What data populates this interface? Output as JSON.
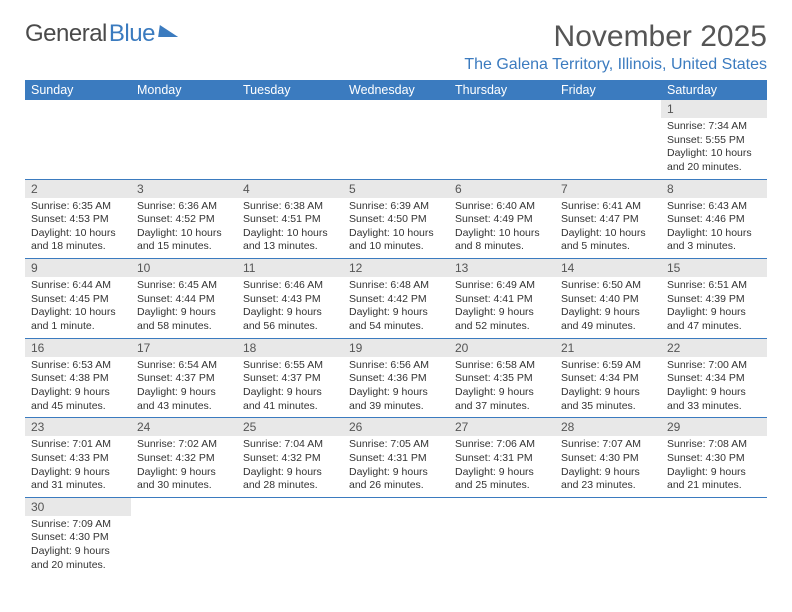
{
  "logo": {
    "text1": "General",
    "text2": "Blue"
  },
  "title": "November 2025",
  "location": "The Galena Territory, Illinois, United States",
  "colors": {
    "header_bg": "#3b7bbf",
    "header_text": "#ffffff",
    "daynum_bg": "#e8e8e8",
    "border": "#3b7bbf",
    "title_color": "#555555",
    "location_color": "#3b7bbf"
  },
  "weekdays": [
    "Sunday",
    "Monday",
    "Tuesday",
    "Wednesday",
    "Thursday",
    "Friday",
    "Saturday"
  ],
  "weeks": [
    [
      null,
      null,
      null,
      null,
      null,
      null,
      {
        "n": "1",
        "sr": "Sunrise: 7:34 AM",
        "ss": "Sunset: 5:55 PM",
        "dl": "Daylight: 10 hours and 20 minutes."
      }
    ],
    [
      {
        "n": "2",
        "sr": "Sunrise: 6:35 AM",
        "ss": "Sunset: 4:53 PM",
        "dl": "Daylight: 10 hours and 18 minutes."
      },
      {
        "n": "3",
        "sr": "Sunrise: 6:36 AM",
        "ss": "Sunset: 4:52 PM",
        "dl": "Daylight: 10 hours and 15 minutes."
      },
      {
        "n": "4",
        "sr": "Sunrise: 6:38 AM",
        "ss": "Sunset: 4:51 PM",
        "dl": "Daylight: 10 hours and 13 minutes."
      },
      {
        "n": "5",
        "sr": "Sunrise: 6:39 AM",
        "ss": "Sunset: 4:50 PM",
        "dl": "Daylight: 10 hours and 10 minutes."
      },
      {
        "n": "6",
        "sr": "Sunrise: 6:40 AM",
        "ss": "Sunset: 4:49 PM",
        "dl": "Daylight: 10 hours and 8 minutes."
      },
      {
        "n": "7",
        "sr": "Sunrise: 6:41 AM",
        "ss": "Sunset: 4:47 PM",
        "dl": "Daylight: 10 hours and 5 minutes."
      },
      {
        "n": "8",
        "sr": "Sunrise: 6:43 AM",
        "ss": "Sunset: 4:46 PM",
        "dl": "Daylight: 10 hours and 3 minutes."
      }
    ],
    [
      {
        "n": "9",
        "sr": "Sunrise: 6:44 AM",
        "ss": "Sunset: 4:45 PM",
        "dl": "Daylight: 10 hours and 1 minute."
      },
      {
        "n": "10",
        "sr": "Sunrise: 6:45 AM",
        "ss": "Sunset: 4:44 PM",
        "dl": "Daylight: 9 hours and 58 minutes."
      },
      {
        "n": "11",
        "sr": "Sunrise: 6:46 AM",
        "ss": "Sunset: 4:43 PM",
        "dl": "Daylight: 9 hours and 56 minutes."
      },
      {
        "n": "12",
        "sr": "Sunrise: 6:48 AM",
        "ss": "Sunset: 4:42 PM",
        "dl": "Daylight: 9 hours and 54 minutes."
      },
      {
        "n": "13",
        "sr": "Sunrise: 6:49 AM",
        "ss": "Sunset: 4:41 PM",
        "dl": "Daylight: 9 hours and 52 minutes."
      },
      {
        "n": "14",
        "sr": "Sunrise: 6:50 AM",
        "ss": "Sunset: 4:40 PM",
        "dl": "Daylight: 9 hours and 49 minutes."
      },
      {
        "n": "15",
        "sr": "Sunrise: 6:51 AM",
        "ss": "Sunset: 4:39 PM",
        "dl": "Daylight: 9 hours and 47 minutes."
      }
    ],
    [
      {
        "n": "16",
        "sr": "Sunrise: 6:53 AM",
        "ss": "Sunset: 4:38 PM",
        "dl": "Daylight: 9 hours and 45 minutes."
      },
      {
        "n": "17",
        "sr": "Sunrise: 6:54 AM",
        "ss": "Sunset: 4:37 PM",
        "dl": "Daylight: 9 hours and 43 minutes."
      },
      {
        "n": "18",
        "sr": "Sunrise: 6:55 AM",
        "ss": "Sunset: 4:37 PM",
        "dl": "Daylight: 9 hours and 41 minutes."
      },
      {
        "n": "19",
        "sr": "Sunrise: 6:56 AM",
        "ss": "Sunset: 4:36 PM",
        "dl": "Daylight: 9 hours and 39 minutes."
      },
      {
        "n": "20",
        "sr": "Sunrise: 6:58 AM",
        "ss": "Sunset: 4:35 PM",
        "dl": "Daylight: 9 hours and 37 minutes."
      },
      {
        "n": "21",
        "sr": "Sunrise: 6:59 AM",
        "ss": "Sunset: 4:34 PM",
        "dl": "Daylight: 9 hours and 35 minutes."
      },
      {
        "n": "22",
        "sr": "Sunrise: 7:00 AM",
        "ss": "Sunset: 4:34 PM",
        "dl": "Daylight: 9 hours and 33 minutes."
      }
    ],
    [
      {
        "n": "23",
        "sr": "Sunrise: 7:01 AM",
        "ss": "Sunset: 4:33 PM",
        "dl": "Daylight: 9 hours and 31 minutes."
      },
      {
        "n": "24",
        "sr": "Sunrise: 7:02 AM",
        "ss": "Sunset: 4:32 PM",
        "dl": "Daylight: 9 hours and 30 minutes."
      },
      {
        "n": "25",
        "sr": "Sunrise: 7:04 AM",
        "ss": "Sunset: 4:32 PM",
        "dl": "Daylight: 9 hours and 28 minutes."
      },
      {
        "n": "26",
        "sr": "Sunrise: 7:05 AM",
        "ss": "Sunset: 4:31 PM",
        "dl": "Daylight: 9 hours and 26 minutes."
      },
      {
        "n": "27",
        "sr": "Sunrise: 7:06 AM",
        "ss": "Sunset: 4:31 PM",
        "dl": "Daylight: 9 hours and 25 minutes."
      },
      {
        "n": "28",
        "sr": "Sunrise: 7:07 AM",
        "ss": "Sunset: 4:30 PM",
        "dl": "Daylight: 9 hours and 23 minutes."
      },
      {
        "n": "29",
        "sr": "Sunrise: 7:08 AM",
        "ss": "Sunset: 4:30 PM",
        "dl": "Daylight: 9 hours and 21 minutes."
      }
    ],
    [
      {
        "n": "30",
        "sr": "Sunrise: 7:09 AM",
        "ss": "Sunset: 4:30 PM",
        "dl": "Daylight: 9 hours and 20 minutes."
      },
      null,
      null,
      null,
      null,
      null,
      null
    ]
  ]
}
